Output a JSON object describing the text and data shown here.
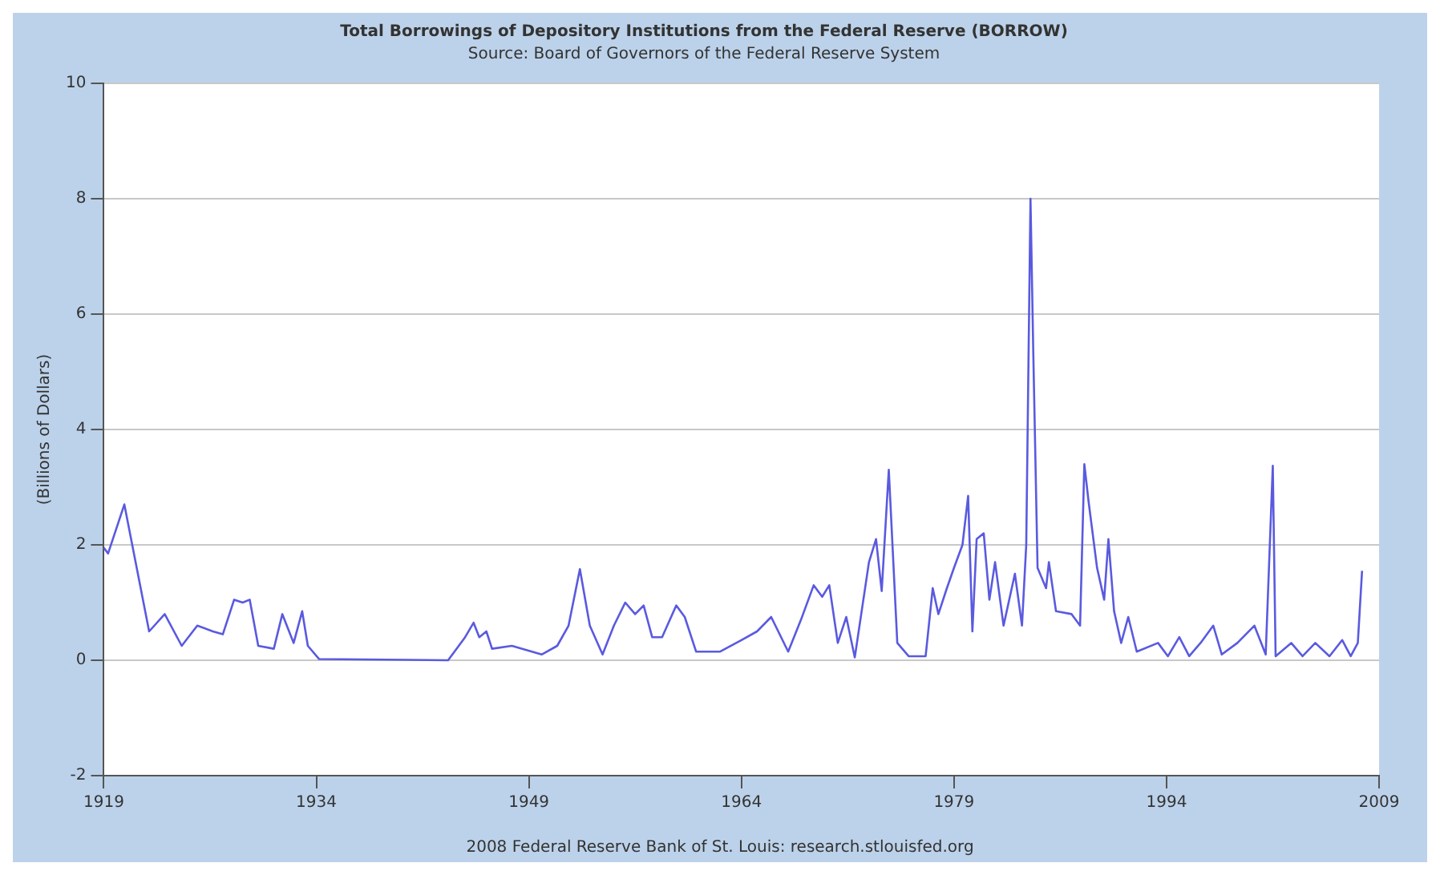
{
  "chart_data": {
    "type": "line",
    "title": "Total Borrowings of Depository Institutions from the Federal Reserve (BORROW)",
    "subtitle": "Source: Board of Governors of the Federal Reserve System",
    "ylabel": "(Billions of Dollars)",
    "annotations": [
      "2008 Federal Reserve Bank of St. Louis: research.stlouisfed.org"
    ],
    "x": [
      1919.0,
      1919.3,
      1920.45,
      1922.2,
      1923.3,
      1924.5,
      1925.6,
      1926.7,
      1927.4,
      1928.2,
      1928.8,
      1929.3,
      1929.9,
      1931.0,
      1931.6,
      1932.4,
      1933.0,
      1933.4,
      1934.2,
      1943.3,
      1944.5,
      1945.1,
      1945.5,
      1946.0,
      1946.4,
      1947.8,
      1949.9,
      1951.0,
      1951.8,
      1952.6,
      1953.3,
      1954.2,
      1955.0,
      1955.8,
      1956.5,
      1957.1,
      1957.7,
      1958.4,
      1959.4,
      1960.0,
      1960.8,
      1962.5,
      1964.0,
      1965.1,
      1966.1,
      1967.3,
      1968.2,
      1969.1,
      1969.7,
      1970.2,
      1970.8,
      1971.4,
      1972.0,
      1973.0,
      1973.5,
      1973.9,
      1974.4,
      1975.0,
      1975.8,
      1977.0,
      1977.5,
      1977.9,
      1978.5,
      1979.0,
      1979.6,
      1980.0,
      1980.3,
      1980.6,
      1981.1,
      1981.5,
      1981.9,
      1982.5,
      1983.3,
      1983.8,
      1984.1,
      1984.4,
      1984.6,
      1984.9,
      1985.5,
      1985.7,
      1986.2,
      1987.3,
      1987.9,
      1988.2,
      1988.5,
      1989.1,
      1989.6,
      1989.9,
      1990.3,
      1990.8,
      1991.3,
      1991.9,
      1993.4,
      1994.1,
      1994.9,
      1995.6,
      1996.4,
      1997.3,
      1997.9,
      1999.0,
      2000.2,
      2001.0,
      2001.5,
      2001.7,
      2002.8,
      2003.6,
      2004.5,
      2005.5,
      2006.4,
      2007.0,
      2007.5,
      2007.8
    ],
    "series": [
      {
        "color": "#5a5ae0",
        "values": [
          1.95,
          1.85,
          2.7,
          0.5,
          0.8,
          0.25,
          0.6,
          0.5,
          0.45,
          1.05,
          1.0,
          1.05,
          0.25,
          0.2,
          0.8,
          0.3,
          0.85,
          0.25,
          0.02,
          0.0,
          0.4,
          0.65,
          0.4,
          0.5,
          0.2,
          0.25,
          0.1,
          0.25,
          0.6,
          1.58,
          0.6,
          0.1,
          0.6,
          1.0,
          0.8,
          0.95,
          0.4,
          0.4,
          0.95,
          0.75,
          0.15,
          0.15,
          0.35,
          0.5,
          0.75,
          0.15,
          0.7,
          1.3,
          1.1,
          1.3,
          0.3,
          0.75,
          0.05,
          1.7,
          2.1,
          1.2,
          3.3,
          0.3,
          0.07,
          0.07,
          1.25,
          0.8,
          1.25,
          1.6,
          2.0,
          2.85,
          0.5,
          2.1,
          2.2,
          1.05,
          1.7,
          0.6,
          1.5,
          0.6,
          2.0,
          8.0,
          5.3,
          1.6,
          1.25,
          1.7,
          0.85,
          0.8,
          0.6,
          3.4,
          2.75,
          1.6,
          1.05,
          2.1,
          0.85,
          0.3,
          0.75,
          0.15,
          0.3,
          0.07,
          0.4,
          0.07,
          0.3,
          0.6,
          0.1,
          0.3,
          0.6,
          0.1,
          3.37,
          0.07,
          0.3,
          0.07,
          0.3,
          0.07,
          0.35,
          0.07,
          0.3,
          1.55
        ]
      }
    ],
    "xlim": [
      1919,
      2009
    ],
    "xticks": [
      1919,
      1934,
      1949,
      1964,
      1979,
      1994,
      2009
    ],
    "ylim": [
      -2,
      10
    ],
    "yticks": [
      -2,
      0,
      2,
      4,
      6,
      8,
      10
    ],
    "grid": "y",
    "marker": "none",
    "line_style": "solid"
  }
}
